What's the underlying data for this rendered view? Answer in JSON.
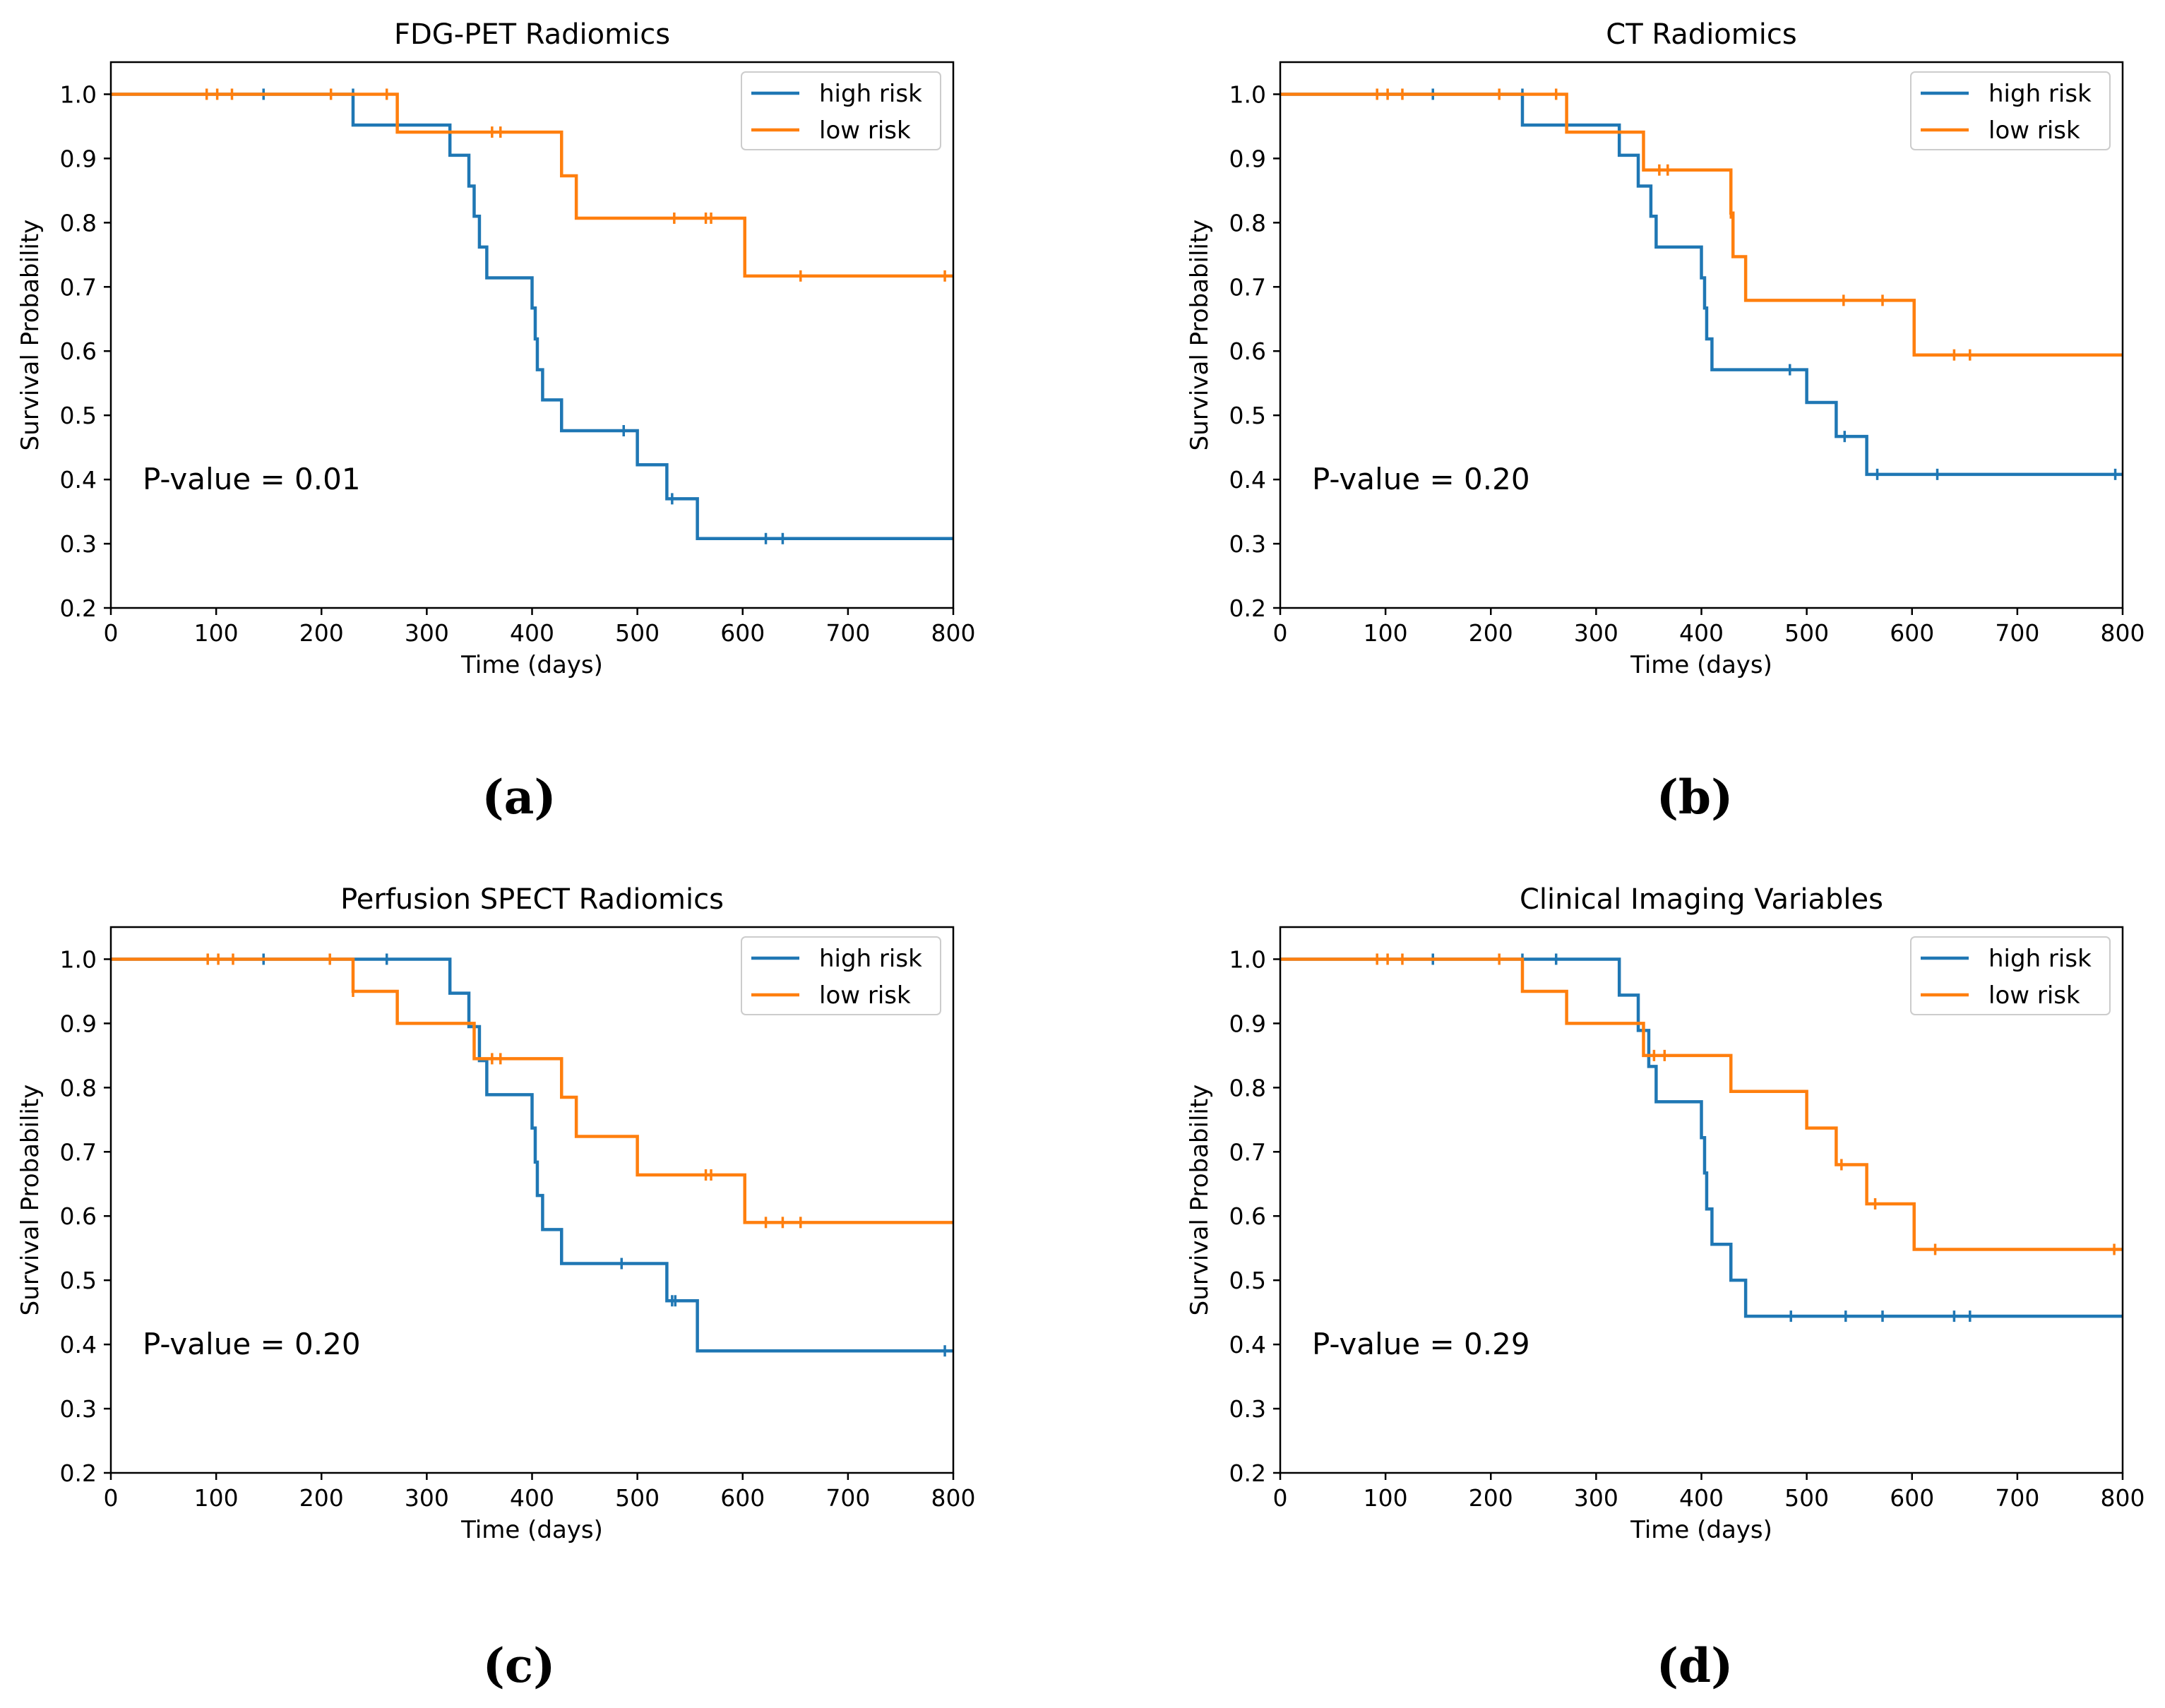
{
  "figure": {
    "panel_captions": [
      "(a)",
      "(b)",
      "(c)",
      "(d)"
    ],
    "colors": {
      "high_risk": "#1f77b4",
      "low_risk": "#ff7f0e",
      "axis": "#000000"
    }
  },
  "chart_data": [
    {
      "type": "line",
      "step": "post",
      "title": "FDG-PET Radiomics",
      "xlabel": "Time (days)",
      "ylabel": "Survival Probability",
      "xlim": [
        0,
        800
      ],
      "ylim": [
        0.2,
        1.05
      ],
      "xticks": [
        0,
        100,
        200,
        300,
        400,
        500,
        600,
        700,
        800
      ],
      "yticks": [
        0.2,
        0.3,
        0.4,
        0.5,
        0.6,
        0.7,
        0.8,
        0.9,
        1.0
      ],
      "ytick_labels": [
        "0.2",
        "0.3",
        "0.4",
        "0.5",
        "0.6",
        "0.7",
        "0.8",
        "0.9",
        "1.0"
      ],
      "annotation": "P-value = 0.01",
      "legend": {
        "location": "upper-right",
        "entries": [
          "high risk",
          "low risk"
        ]
      },
      "series": [
        {
          "name": "high risk",
          "color": "#1f77b4",
          "x": [
            0,
            230,
            322,
            340,
            345,
            350,
            357,
            400,
            403,
            405,
            410,
            428,
            500,
            528,
            557,
            800
          ],
          "y": [
            1.0,
            0.952,
            0.905,
            0.857,
            0.81,
            0.762,
            0.714,
            0.667,
            0.619,
            0.571,
            0.524,
            0.476,
            0.423,
            0.37,
            0.308,
            0.308
          ],
          "censored": [
            [
              145,
              1.0
            ],
            [
              230,
              1.0
            ],
            [
              487,
              0.476
            ],
            [
              533,
              0.37
            ],
            [
              622,
              0.308
            ],
            [
              638,
              0.308
            ]
          ]
        },
        {
          "name": "low risk",
          "color": "#ff7f0e",
          "x": [
            0,
            272,
            428,
            442,
            602,
            800
          ],
          "y": [
            1.0,
            0.941,
            0.873,
            0.807,
            0.717,
            0.717
          ],
          "censored": [
            [
              91,
              1.0
            ],
            [
              101,
              1.0
            ],
            [
              115,
              1.0
            ],
            [
              209,
              1.0
            ],
            [
              262,
              1.0
            ],
            [
              362,
              0.941
            ],
            [
              370,
              0.941
            ],
            [
              535,
              0.807
            ],
            [
              565,
              0.807
            ],
            [
              570,
              0.807
            ],
            [
              655,
              0.717
            ],
            [
              792,
              0.717
            ]
          ]
        }
      ]
    },
    {
      "type": "line",
      "step": "post",
      "title": "CT Radiomics",
      "xlabel": "Time (days)",
      "ylabel": "Survival Probability",
      "xlim": [
        0,
        800
      ],
      "ylim": [
        0.2,
        1.05
      ],
      "xticks": [
        0,
        100,
        200,
        300,
        400,
        500,
        600,
        700,
        800
      ],
      "yticks": [
        0.2,
        0.3,
        0.4,
        0.5,
        0.6,
        0.7,
        0.8,
        0.9,
        1.0
      ],
      "ytick_labels": [
        "0.2",
        "0.3",
        "0.4",
        "0.5",
        "0.6",
        "0.7",
        "0.8",
        "0.9",
        "1.0"
      ],
      "annotation": "P-value = 0.20",
      "legend": {
        "location": "upper-right",
        "entries": [
          "high risk",
          "low risk"
        ]
      },
      "series": [
        {
          "name": "high risk",
          "color": "#1f77b4",
          "x": [
            0,
            230,
            322,
            340,
            352,
            357,
            400,
            403,
            405,
            410,
            500,
            528,
            557,
            800
          ],
          "y": [
            1.0,
            0.952,
            0.905,
            0.857,
            0.81,
            0.762,
            0.714,
            0.667,
            0.619,
            0.571,
            0.52,
            0.467,
            0.408,
            0.408
          ],
          "censored": [
            [
              145,
              1.0
            ],
            [
              230,
              1.0
            ],
            [
              484,
              0.571
            ],
            [
              536,
              0.467
            ],
            [
              567,
              0.408
            ],
            [
              624,
              0.408
            ],
            [
              793,
              0.408
            ]
          ]
        },
        {
          "name": "low risk",
          "color": "#ff7f0e",
          "x": [
            0,
            272,
            345,
            428,
            430,
            442,
            602,
            800
          ],
          "y": [
            1.0,
            0.941,
            0.882,
            0.815,
            0.747,
            0.679,
            0.594,
            0.594
          ],
          "censored": [
            [
              92,
              1.0
            ],
            [
              102,
              1.0
            ],
            [
              116,
              1.0
            ],
            [
              208,
              1.0
            ],
            [
              262,
              1.0
            ],
            [
              360,
              0.882
            ],
            [
              368,
              0.882
            ],
            [
              428,
              0.815
            ],
            [
              535,
              0.679
            ],
            [
              572,
              0.679
            ],
            [
              640,
              0.594
            ],
            [
              655,
              0.594
            ]
          ]
        }
      ]
    },
    {
      "type": "line",
      "step": "post",
      "title": "Perfusion SPECT Radiomics",
      "xlabel": "Time (days)",
      "ylabel": "Survival Probability",
      "xlim": [
        0,
        800
      ],
      "ylim": [
        0.2,
        1.05
      ],
      "xticks": [
        0,
        100,
        200,
        300,
        400,
        500,
        600,
        700,
        800
      ],
      "yticks": [
        0.2,
        0.3,
        0.4,
        0.5,
        0.6,
        0.7,
        0.8,
        0.9,
        1.0
      ],
      "ytick_labels": [
        "0.2",
        "0.3",
        "0.4",
        "0.5",
        "0.6",
        "0.7",
        "0.8",
        "0.9",
        "1.0"
      ],
      "annotation": "P-value = 0.20",
      "legend": {
        "location": "upper-right",
        "entries": [
          "high risk",
          "low risk"
        ]
      },
      "series": [
        {
          "name": "high risk",
          "color": "#1f77b4",
          "x": [
            0,
            322,
            340,
            350,
            357,
            400,
            403,
            405,
            410,
            428,
            528,
            557,
            800
          ],
          "y": [
            1.0,
            0.947,
            0.895,
            0.842,
            0.789,
            0.737,
            0.684,
            0.632,
            0.579,
            0.526,
            0.468,
            0.39,
            0.39
          ],
          "censored": [
            [
              145,
              1.0
            ],
            [
              262,
              1.0
            ],
            [
              485,
              0.526
            ],
            [
              533,
              0.468
            ],
            [
              536,
              0.468
            ],
            [
              792,
              0.39
            ]
          ]
        },
        {
          "name": "low risk",
          "color": "#ff7f0e",
          "x": [
            0,
            230,
            272,
            345,
            428,
            442,
            500,
            602,
            800
          ],
          "y": [
            1.0,
            0.95,
            0.9,
            0.845,
            0.785,
            0.724,
            0.664,
            0.59,
            0.59
          ],
          "censored": [
            [
              92,
              1.0
            ],
            [
              102,
              1.0
            ],
            [
              116,
              1.0
            ],
            [
              208,
              1.0
            ],
            [
              230,
              0.95
            ],
            [
              362,
              0.845
            ],
            [
              370,
              0.845
            ],
            [
              565,
              0.664
            ],
            [
              570,
              0.664
            ],
            [
              622,
              0.59
            ],
            [
              638,
              0.59
            ],
            [
              655,
              0.59
            ]
          ]
        }
      ]
    },
    {
      "type": "line",
      "step": "post",
      "title": "Clinical Imaging Variables",
      "xlabel": "Time (days)",
      "ylabel": "Survival Probability",
      "xlim": [
        0,
        800
      ],
      "ylim": [
        0.2,
        1.05
      ],
      "xticks": [
        0,
        100,
        200,
        300,
        400,
        500,
        600,
        700,
        800
      ],
      "yticks": [
        0.2,
        0.3,
        0.4,
        0.5,
        0.6,
        0.7,
        0.8,
        0.9,
        1.0
      ],
      "ytick_labels": [
        "0.2",
        "0.3",
        "0.4",
        "0.5",
        "0.6",
        "0.7",
        "0.8",
        "0.9",
        "1.0"
      ],
      "annotation": "P-value = 0.29",
      "legend": {
        "location": "upper-right",
        "entries": [
          "high risk",
          "low risk"
        ]
      },
      "series": [
        {
          "name": "high risk",
          "color": "#1f77b4",
          "x": [
            0,
            322,
            340,
            350,
            357,
            400,
            403,
            405,
            410,
            428,
            442,
            800
          ],
          "y": [
            1.0,
            0.944,
            0.889,
            0.833,
            0.778,
            0.722,
            0.667,
            0.611,
            0.556,
            0.5,
            0.444,
            0.444
          ],
          "censored": [
            [
              145,
              1.0
            ],
            [
              230,
              1.0
            ],
            [
              262,
              1.0
            ],
            [
              485,
              0.444
            ],
            [
              537,
              0.444
            ],
            [
              572,
              0.444
            ],
            [
              640,
              0.444
            ],
            [
              655,
              0.444
            ]
          ]
        },
        {
          "name": "low risk",
          "color": "#ff7f0e",
          "x": [
            0,
            230,
            272,
            345,
            428,
            500,
            528,
            557,
            602,
            800
          ],
          "y": [
            1.0,
            0.95,
            0.9,
            0.85,
            0.794,
            0.737,
            0.68,
            0.619,
            0.548,
            0.548
          ],
          "censored": [
            [
              92,
              1.0
            ],
            [
              102,
              1.0
            ],
            [
              116,
              1.0
            ],
            [
              208,
              1.0
            ],
            [
              355,
              0.85
            ],
            [
              365,
              0.85
            ],
            [
              533,
              0.68
            ],
            [
              565,
              0.619
            ],
            [
              622,
              0.548
            ],
            [
              792,
              0.548
            ]
          ]
        }
      ]
    }
  ]
}
